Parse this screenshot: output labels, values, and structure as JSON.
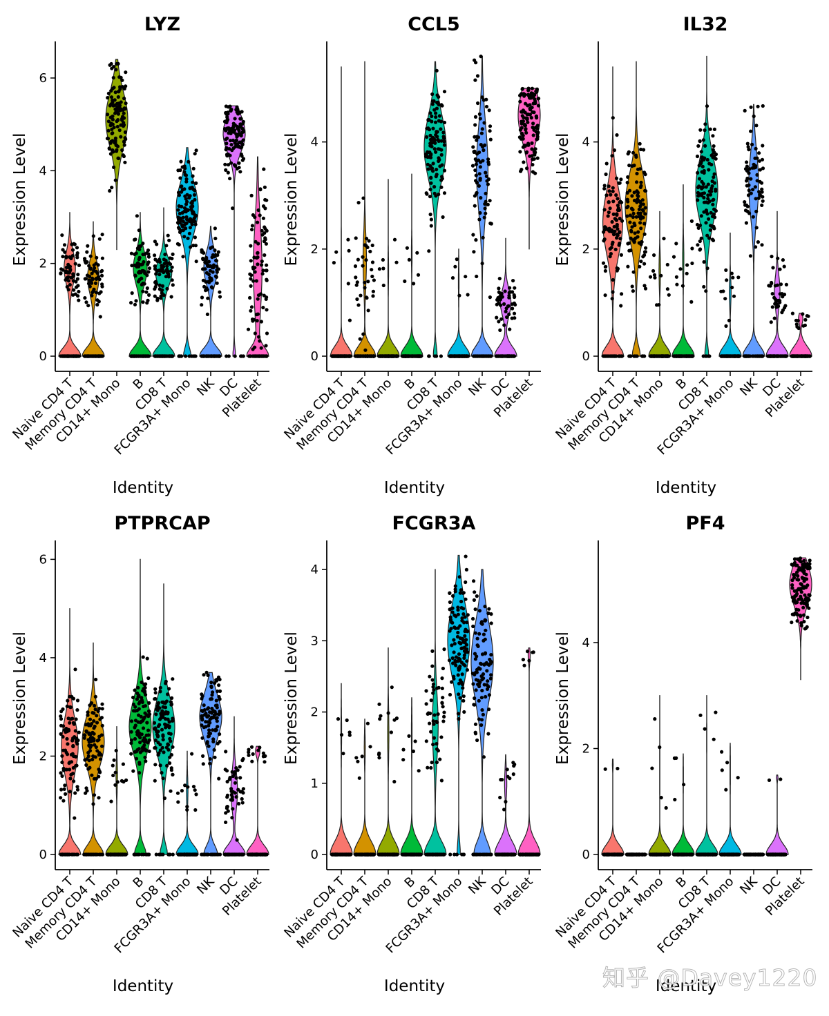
{
  "watermark": "知乎 @Davey1220",
  "colors": {
    "Naive CD4 T": "#F8766D",
    "Memory CD4 T": "#D39200",
    "CD14+ Mono": "#93AA00",
    "B": "#00BA38",
    "CD8 T": "#00C19F",
    "FCGR3A+ Mono": "#00B9E3",
    "NK": "#619CFF",
    "DC": "#DB72FB",
    "Platelet": "#FF61C3"
  },
  "chart_data": [
    {
      "type": "violin",
      "title": "LYZ",
      "xlabel": "Identity",
      "ylabel": "Expression Level",
      "categories": [
        "Naive CD4 T",
        "Memory CD4 T",
        "CD14+ Mono",
        "B",
        "CD8 T",
        "FCGR3A+ Mono",
        "NK",
        "DC",
        "Platelet"
      ],
      "ylim": [
        0,
        6.7
      ],
      "yticks": [
        0,
        2,
        4,
        6
      ],
      "violins": [
        {
          "min": 0,
          "max": 3.1,
          "zero_frac": 0.5,
          "center": 1.9,
          "spread": 0.35
        },
        {
          "min": 0,
          "max": 2.9,
          "zero_frac": 0.5,
          "center": 1.7,
          "spread": 0.35
        },
        {
          "min": 2.3,
          "max": 6.4,
          "zero_frac": 0,
          "center": 5.1,
          "spread": 0.6
        },
        {
          "min": 0,
          "max": 3.1,
          "zero_frac": 0.45,
          "center": 1.9,
          "spread": 0.35
        },
        {
          "min": 0,
          "max": 3.2,
          "zero_frac": 0.45,
          "center": 1.8,
          "spread": 0.3
        },
        {
          "min": 0,
          "max": 4.5,
          "zero_frac": 0.1,
          "center": 3.2,
          "spread": 0.55
        },
        {
          "min": 0,
          "max": 2.8,
          "zero_frac": 0.45,
          "center": 1.9,
          "spread": 0.35
        },
        {
          "min": 0,
          "max": 5.4,
          "zero_frac": 0.05,
          "center": 4.8,
          "spread": 0.4
        },
        {
          "min": 0,
          "max": 4.3,
          "zero_frac": 0.3,
          "center": 1.9,
          "spread": 1.0
        }
      ]
    },
    {
      "type": "violin",
      "title": "CCL5",
      "xlabel": "Identity",
      "ylabel": "Expression Level",
      "categories": [
        "Naive CD4 T",
        "Memory CD4 T",
        "CD14+ Mono",
        "B",
        "CD8 T",
        "FCGR3A+ Mono",
        "NK",
        "DC",
        "Platelet"
      ],
      "ylim": [
        0,
        5.8
      ],
      "yticks": [
        0,
        2,
        4
      ],
      "violins": [
        {
          "min": 0,
          "max": 5.4,
          "zero_frac": 0.95,
          "center": 1.8,
          "spread": 0.6
        },
        {
          "min": 0,
          "max": 5.5,
          "zero_frac": 0.7,
          "center": 1.8,
          "spread": 0.5
        },
        {
          "min": 0,
          "max": 3.3,
          "zero_frac": 0.95,
          "center": 1.6,
          "spread": 0.3
        },
        {
          "min": 0,
          "max": 3.4,
          "zero_frac": 0.95,
          "center": 1.9,
          "spread": 0.3
        },
        {
          "min": 0,
          "max": 5.5,
          "zero_frac": 0.05,
          "center": 3.9,
          "spread": 0.6
        },
        {
          "min": 0,
          "max": 2.0,
          "zero_frac": 0.95,
          "center": 1.4,
          "spread": 0.3
        },
        {
          "min": 0,
          "max": 5.6,
          "zero_frac": 0.3,
          "center": 3.5,
          "spread": 0.8
        },
        {
          "min": 0,
          "max": 2.2,
          "zero_frac": 0.6,
          "center": 1.0,
          "spread": 0.25
        },
        {
          "min": 2.0,
          "max": 5.0,
          "zero_frac": 0,
          "center": 4.5,
          "spread": 0.5
        }
      ]
    },
    {
      "type": "violin",
      "title": "IL32",
      "xlabel": "Identity",
      "ylabel": "Expression Level",
      "categories": [
        "Naive CD4 T",
        "Memory CD4 T",
        "CD14+ Mono",
        "B",
        "CD8 T",
        "FCGR3A+ Mono",
        "NK",
        "DC",
        "Platelet"
      ],
      "ylim": [
        0,
        5.8
      ],
      "yticks": [
        0,
        2,
        4
      ],
      "violins": [
        {
          "min": 0,
          "max": 5.4,
          "zero_frac": 0.25,
          "center": 2.5,
          "spread": 0.6
        },
        {
          "min": 0,
          "max": 5.5,
          "zero_frac": 0.1,
          "center": 2.8,
          "spread": 0.6
        },
        {
          "min": 0,
          "max": 2.7,
          "zero_frac": 0.9,
          "center": 1.6,
          "spread": 0.3
        },
        {
          "min": 0,
          "max": 3.2,
          "zero_frac": 0.9,
          "center": 1.8,
          "spread": 0.35
        },
        {
          "min": 0,
          "max": 5.6,
          "zero_frac": 0.05,
          "center": 3.1,
          "spread": 0.6
        },
        {
          "min": 0,
          "max": 2.3,
          "zero_frac": 0.9,
          "center": 1.2,
          "spread": 0.25
        },
        {
          "min": 0,
          "max": 4.7,
          "zero_frac": 0.4,
          "center": 3.2,
          "spread": 0.6
        },
        {
          "min": 0,
          "max": 2.7,
          "zero_frac": 0.7,
          "center": 1.2,
          "spread": 0.3
        },
        {
          "min": 0,
          "max": 0.8,
          "zero_frac": 0.9,
          "center": 0.7,
          "spread": 0.1
        }
      ]
    },
    {
      "type": "violin",
      "title": "PTPRCAP",
      "xlabel": "Identity",
      "ylabel": "Expression Level",
      "categories": [
        "Naive CD4 T",
        "Memory CD4 T",
        "CD14+ Mono",
        "B",
        "CD8 T",
        "FCGR3A+ Mono",
        "NK",
        "DC",
        "Platelet"
      ],
      "ylim": [
        0,
        6.3
      ],
      "yticks": [
        0,
        2,
        4,
        6
      ],
      "violins": [
        {
          "min": 0,
          "max": 5.0,
          "zero_frac": 0.3,
          "center": 2.2,
          "spread": 0.55
        },
        {
          "min": 0,
          "max": 4.3,
          "zero_frac": 0.25,
          "center": 2.3,
          "spread": 0.5
        },
        {
          "min": 0,
          "max": 2.6,
          "zero_frac": 0.9,
          "center": 1.6,
          "spread": 0.3
        },
        {
          "min": 0,
          "max": 6.0,
          "zero_frac": 0.15,
          "center": 2.6,
          "spread": 0.55
        },
        {
          "min": 0,
          "max": 5.5,
          "zero_frac": 0.1,
          "center": 2.6,
          "spread": 0.55
        },
        {
          "min": 0,
          "max": 2.1,
          "zero_frac": 0.9,
          "center": 1.3,
          "spread": 0.3
        },
        {
          "min": 0,
          "max": 3.7,
          "zero_frac": 0.2,
          "center": 2.8,
          "spread": 0.45
        },
        {
          "min": 0,
          "max": 2.8,
          "zero_frac": 0.6,
          "center": 1.3,
          "spread": 0.4
        },
        {
          "min": 0,
          "max": 2.2,
          "zero_frac": 0.9,
          "center": 2.1,
          "spread": 0.1
        }
      ]
    },
    {
      "type": "violin",
      "title": "FCGR3A",
      "xlabel": "Identity",
      "ylabel": "Expression Level",
      "categories": [
        "Naive CD4 T",
        "Memory CD4 T",
        "CD14+ Mono",
        "B",
        "CD8 T",
        "FCGR3A+ Mono",
        "NK",
        "DC",
        "Platelet"
      ],
      "ylim": [
        0,
        4.35
      ],
      "yticks": [
        0,
        1,
        2,
        3,
        4
      ],
      "violins": [
        {
          "min": 0,
          "max": 2.4,
          "zero_frac": 0.95,
          "center": 1.7,
          "spread": 0.3
        },
        {
          "min": 0,
          "max": 1.9,
          "zero_frac": 0.95,
          "center": 1.5,
          "spread": 0.2
        },
        {
          "min": 0,
          "max": 2.9,
          "zero_frac": 0.9,
          "center": 1.7,
          "spread": 0.35
        },
        {
          "min": 0,
          "max": 2.2,
          "zero_frac": 0.95,
          "center": 1.7,
          "spread": 0.3
        },
        {
          "min": 0,
          "max": 4.0,
          "zero_frac": 0.6,
          "center": 1.8,
          "spread": 0.45
        },
        {
          "min": 0,
          "max": 4.2,
          "zero_frac": 0.05,
          "center": 3.0,
          "spread": 0.5
        },
        {
          "min": 0,
          "max": 4.0,
          "zero_frac": 0.2,
          "center": 2.7,
          "spread": 0.55
        },
        {
          "min": 0,
          "max": 1.4,
          "zero_frac": 0.9,
          "center": 1.0,
          "spread": 0.2
        },
        {
          "min": 0,
          "max": 2.9,
          "zero_frac": 0.95,
          "center": 2.8,
          "spread": 0.1
        }
      ]
    },
    {
      "type": "violin",
      "title": "PF4",
      "xlabel": "Identity",
      "ylabel": "Expression Level",
      "categories": [
        "Naive CD4 T",
        "Memory CD4 T",
        "CD14+ Mono",
        "B",
        "CD8 T",
        "FCGR3A+ Mono",
        "NK",
        "DC",
        "Platelet"
      ],
      "ylim": [
        0,
        5.85
      ],
      "yticks": [
        0,
        2,
        4
      ],
      "violins": [
        {
          "min": 0,
          "max": 1.8,
          "zero_frac": 0.98,
          "center": 1.7,
          "spread": 0.1
        },
        {
          "min": 0,
          "max": 0,
          "zero_frac": 1,
          "center": 0,
          "spread": 0
        },
        {
          "min": 0,
          "max": 3.0,
          "zero_frac": 0.96,
          "center": 1.6,
          "spread": 0.5
        },
        {
          "min": 0,
          "max": 1.9,
          "zero_frac": 0.97,
          "center": 1.5,
          "spread": 0.3
        },
        {
          "min": 0,
          "max": 3.0,
          "zero_frac": 0.97,
          "center": 2.2,
          "spread": 0.5
        },
        {
          "min": 0,
          "max": 2.1,
          "zero_frac": 0.96,
          "center": 1.6,
          "spread": 0.35
        },
        {
          "min": 0,
          "max": 0,
          "zero_frac": 1,
          "center": 0,
          "spread": 0
        },
        {
          "min": 0,
          "max": 1.5,
          "zero_frac": 0.98,
          "center": 1.45,
          "spread": 0.05
        },
        {
          "min": 3.3,
          "max": 5.6,
          "zero_frac": 0,
          "center": 5.1,
          "spread": 0.4
        }
      ]
    }
  ]
}
